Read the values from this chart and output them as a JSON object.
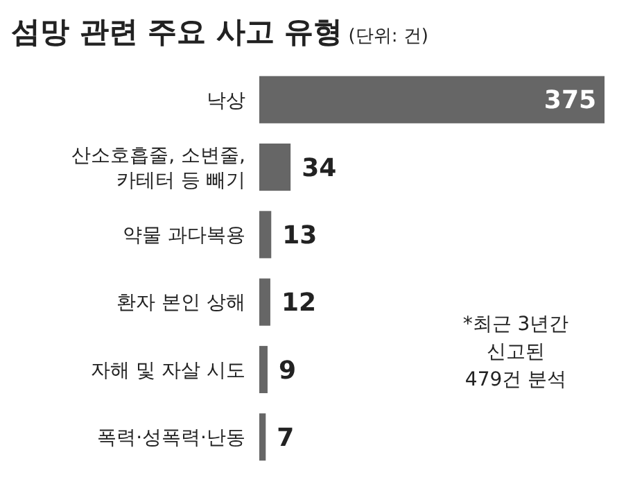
{
  "chart_data": {
    "type": "bar",
    "orientation": "horizontal",
    "title": "섬망 관련 주요 사고 유형",
    "subtitle": "(단위: 건)",
    "categories": [
      "낙상",
      "산소호흡줄, 소변줄, 카테터 등 빼기",
      "약물 과다복용",
      "환자 본인 상해",
      "자해 및 자살 시도",
      "폭력·성폭력·난동"
    ],
    "values": [
      375,
      34,
      13,
      12,
      9,
      7
    ],
    "color": "#666666",
    "data_labels": true,
    "xlim": [
      0,
      375
    ],
    "annotations": [
      "*최근 3년간 신고된 479건 분석"
    ]
  }
}
